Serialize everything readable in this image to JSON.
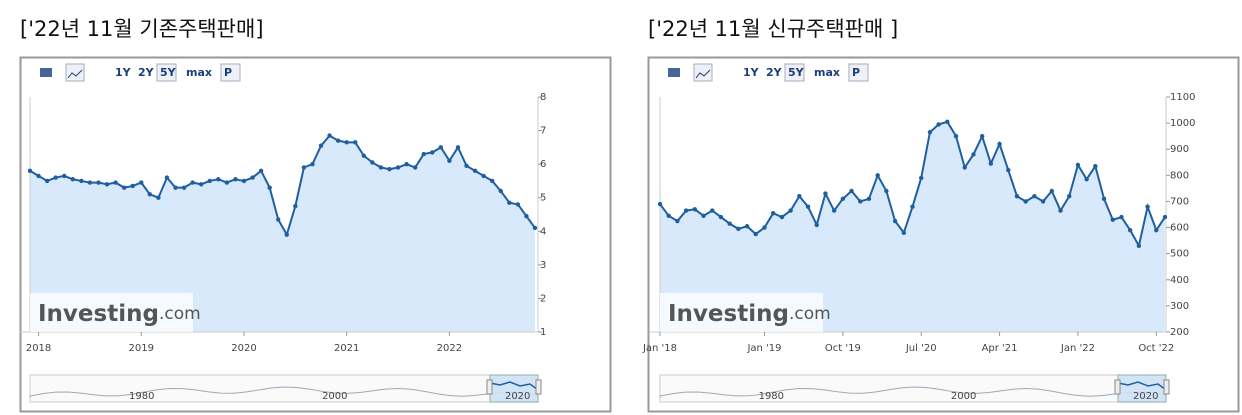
{
  "chart_data": [
    {
      "type": "line",
      "title": "['22년 11월 기존주택판매]",
      "toolbar": [
        "1Y",
        "2Y",
        "5Y",
        "max",
        "P"
      ],
      "watermark": [
        "Investing",
        ".com"
      ],
      "navigator_labels": [
        "1980",
        "2000",
        "2020"
      ],
      "categories": [
        null,
        "2018",
        null,
        null,
        null,
        null,
        null,
        null,
        null,
        null,
        null,
        null,
        null,
        "2019",
        null,
        null,
        null,
        null,
        null,
        null,
        null,
        null,
        null,
        null,
        null,
        "2020",
        null,
        null,
        null,
        null,
        null,
        null,
        null,
        null,
        null,
        null,
        null,
        "2021",
        null,
        null,
        null,
        null,
        null,
        null,
        null,
        null,
        null,
        null,
        null,
        "2022",
        null,
        null,
        null,
        null,
        null,
        null,
        null,
        null,
        null,
        null
      ],
      "values": [
        5.8,
        5.65,
        5.5,
        5.6,
        5.65,
        5.55,
        5.5,
        5.45,
        5.45,
        5.4,
        5.45,
        5.3,
        5.35,
        5.45,
        5.1,
        5.0,
        5.6,
        5.3,
        5.3,
        5.45,
        5.4,
        5.5,
        5.55,
        5.45,
        5.55,
        5.5,
        5.6,
        5.8,
        5.3,
        4.35,
        3.9,
        4.75,
        5.9,
        6.0,
        6.55,
        6.85,
        6.7,
        6.65,
        6.65,
        6.25,
        6.05,
        5.9,
        5.85,
        5.9,
        6.0,
        5.9,
        6.3,
        6.35,
        6.5,
        6.1,
        6.5,
        5.95,
        5.8,
        5.65,
        5.5,
        5.2,
        4.85,
        4.8,
        4.45,
        4.1
      ],
      "color": "#1f5fa0",
      "area_color": "#d8e9fb",
      "ylim": [
        1,
        8
      ],
      "yticks": [
        1,
        2,
        3,
        4,
        5,
        6,
        7,
        8
      ]
    },
    {
      "type": "line",
      "title": "['22년 11월 신규주택판매 ]",
      "toolbar": [
        "1Y",
        "2Y",
        "5Y",
        "max",
        "P"
      ],
      "watermark": [
        "Investing",
        ".com"
      ],
      "navigator_labels": [
        "1980",
        "2000",
        "2020"
      ],
      "categories": [
        "Jan '18",
        null,
        null,
        null,
        null,
        null,
        null,
        null,
        null,
        null,
        null,
        null,
        "Jan '19",
        null,
        null,
        null,
        null,
        null,
        null,
        null,
        null,
        "Oct '19",
        null,
        null,
        null,
        null,
        null,
        null,
        null,
        null,
        "Jul '20",
        null,
        null,
        null,
        null,
        null,
        null,
        null,
        null,
        "Apr '21",
        null,
        null,
        null,
        null,
        null,
        null,
        null,
        null,
        "Jan '22",
        null,
        null,
        null,
        null,
        null,
        null,
        null,
        null,
        "Oct '22",
        null
      ],
      "values": [
        690,
        645,
        625,
        665,
        670,
        645,
        665,
        640,
        615,
        595,
        605,
        575,
        600,
        655,
        640,
        665,
        720,
        680,
        610,
        730,
        665,
        710,
        740,
        700,
        710,
        800,
        740,
        625,
        580,
        680,
        790,
        965,
        995,
        1005,
        950,
        830,
        880,
        950,
        845,
        920,
        820,
        720,
        700,
        720,
        700,
        740,
        665,
        720,
        840,
        785,
        835,
        710,
        630,
        640,
        590,
        530,
        680,
        590,
        640
      ],
      "color": "#1f5fa0",
      "area_color": "#d8e9fb",
      "ylim": [
        200,
        1100
      ],
      "yticks": [
        200,
        300,
        400,
        500,
        600,
        700,
        800,
        900,
        1000,
        1100
      ]
    }
  ]
}
